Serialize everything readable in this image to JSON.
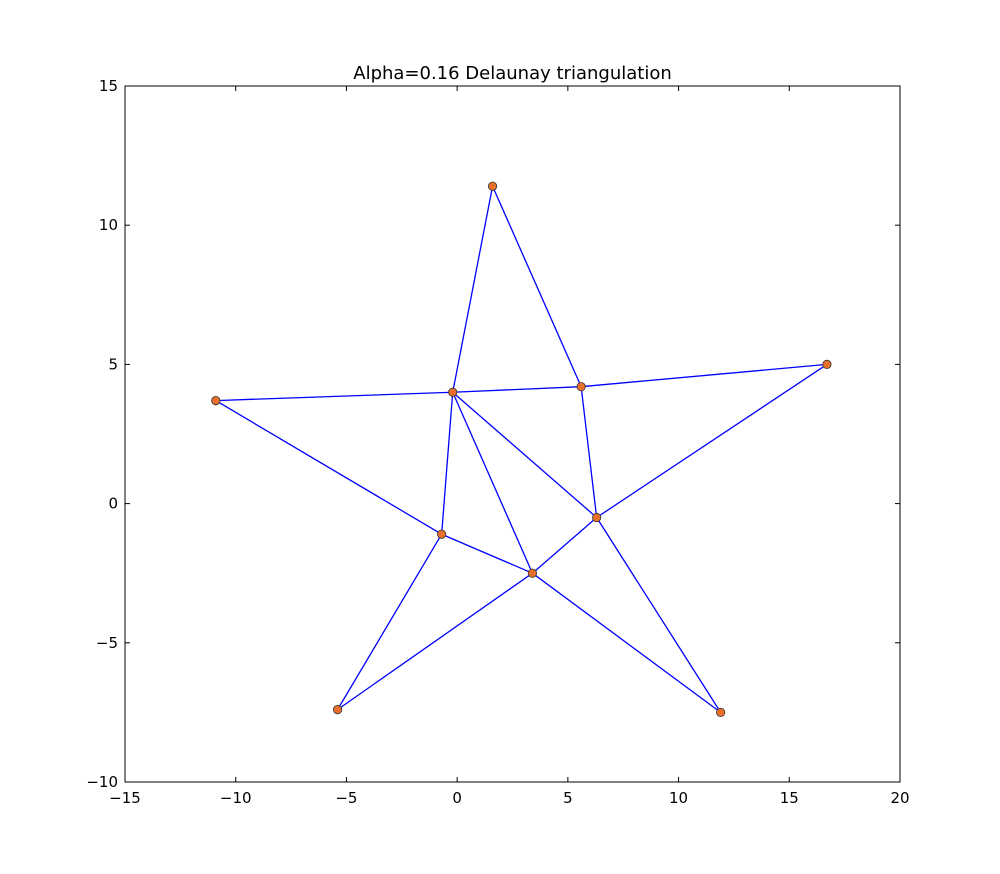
{
  "chart_data": {
    "type": "line",
    "title": "Alpha=0.16 Delaunay triangulation",
    "xlabel": "",
    "ylabel": "",
    "xlim": [
      -15,
      20
    ],
    "ylim": [
      -10,
      15
    ],
    "xticks": [
      -15,
      -10,
      -5,
      0,
      5,
      10,
      15,
      20
    ],
    "yticks": [
      -10,
      -5,
      0,
      5,
      10,
      15
    ],
    "xtick_labels": [
      "−15",
      "−10",
      "−5",
      "0",
      "5",
      "10",
      "15",
      "20"
    ],
    "ytick_labels": [
      "−10",
      "−5",
      "0",
      "5",
      "10",
      "15"
    ],
    "grid": false,
    "points": [
      {
        "x": 1.6,
        "y": 11.4
      },
      {
        "x": 5.6,
        "y": 4.2
      },
      {
        "x": 16.7,
        "y": 5.0
      },
      {
        "x": 6.3,
        "y": -0.5
      },
      {
        "x": 11.9,
        "y": -7.5
      },
      {
        "x": 3.4,
        "y": -2.5
      },
      {
        "x": -5.4,
        "y": -7.4
      },
      {
        "x": -0.7,
        "y": -1.1
      },
      {
        "x": -10.9,
        "y": 3.7
      },
      {
        "x": -0.2,
        "y": 4.0
      }
    ],
    "edges": [
      [
        0,
        1
      ],
      [
        0,
        9
      ],
      [
        1,
        2
      ],
      [
        1,
        3
      ],
      [
        1,
        9
      ],
      [
        2,
        3
      ],
      [
        3,
        4
      ],
      [
        3,
        5
      ],
      [
        3,
        9
      ],
      [
        4,
        5
      ],
      [
        5,
        6
      ],
      [
        5,
        7
      ],
      [
        5,
        9
      ],
      [
        6,
        7
      ],
      [
        7,
        8
      ],
      [
        7,
        9
      ],
      [
        8,
        9
      ]
    ],
    "line_color": "#0000ff",
    "marker_color": "#e8702a",
    "marker_edge_color": "#333333"
  }
}
